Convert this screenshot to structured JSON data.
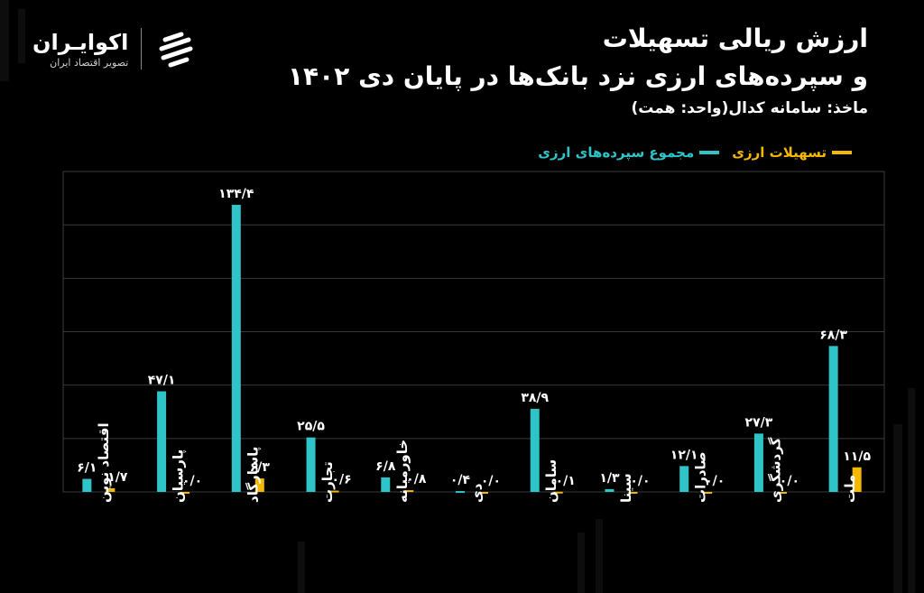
{
  "logo": {
    "name": "اکوایـران",
    "tagline": "تصویر اقتصاد ایران"
  },
  "title": {
    "line1": "ارزش ریالی تسهیلات",
    "line2": "و سپرده‌های ارزی نزد بانک‌ها در پایان دی ۱۴۰۲",
    "source": "ماخذ: سامانه کدال(واحد: همت)"
  },
  "legend": {
    "loans_label": "تسهیلات ارزی",
    "deposits_label": "مجموع سپرده‌های ارزی"
  },
  "colors": {
    "deposits": "#2ec4c8",
    "loans": "#f5b800",
    "grid": "#3a3a3a"
  },
  "chart_data": {
    "type": "bar",
    "title": "ارزش ریالی تسهیلات و سپرده‌های ارزی نزد بانک‌ها در پایان دی ۱۴۰۲",
    "ylim": [
      0,
      150
    ],
    "grid": true,
    "categories": [
      "اقتصاد نوین",
      "پارسیان",
      "پاسارگاد",
      "تجارت",
      "خاورمیانه",
      "دی",
      "سامان",
      "سینا",
      "صادرات",
      "گردشگری",
      "ملت"
    ],
    "series": [
      {
        "name": "مجموع سپرده‌های ارزی",
        "values": [
          6.1,
          47.1,
          134.4,
          25.5,
          6.8,
          0.4,
          38.9,
          1.3,
          12.1,
          27.3,
          68.3
        ],
        "labels": [
          "۶/۱",
          "۴۷/۱",
          "۱۳۴/۴",
          "۲۵/۵",
          "۶/۸",
          "۰/۴",
          "۳۸/۹",
          "۱/۳",
          "۱۲/۱",
          "۲۷/۳",
          "۶۸/۳"
        ]
      },
      {
        "name": "تسهیلات ارزی",
        "values": [
          1.7,
          0.0,
          6.3,
          0.6,
          0.8,
          0.0,
          0.1,
          0.0,
          0.0,
          0.0,
          11.5
        ],
        "labels": [
          "۱/۷",
          "۰/۰",
          "۶/۳",
          "۰/۶",
          "۰/۸",
          "۰/۰",
          "۰/۱",
          "۰/۰",
          "۰/۰",
          "۰/۰",
          "۱۱/۵"
        ]
      }
    ]
  }
}
